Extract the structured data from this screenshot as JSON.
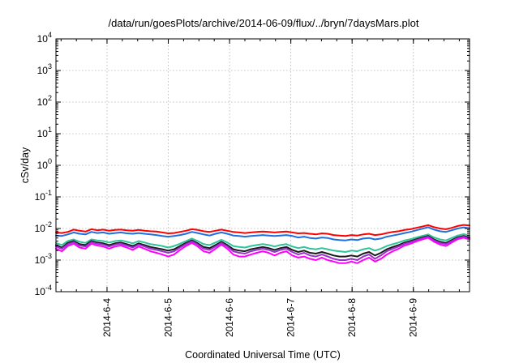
{
  "chart_data": {
    "type": "line",
    "title": "/data/run/goesPlots/archive/2014-06-09/flux/../bryn/7daysMars.plot",
    "xlabel": "Coordinated Universal Time (UTC)",
    "ylabel": "cSv/day",
    "y_scale": "log",
    "ylim": [
      0.0001,
      10000
    ],
    "y_ticks": [
      {
        "base": "10",
        "exp": "-4",
        "value": 0.0001
      },
      {
        "base": "10",
        "exp": "-3",
        "value": 0.001
      },
      {
        "base": "10",
        "exp": "-2",
        "value": 0.01
      },
      {
        "base": "10",
        "exp": "-1",
        "value": 0.1
      },
      {
        "base": "10",
        "exp": "0",
        "value": 1
      },
      {
        "base": "10",
        "exp": "1",
        "value": 10
      },
      {
        "base": "10",
        "exp": "2",
        "value": 100
      },
      {
        "base": "10",
        "exp": "3",
        "value": 1000
      },
      {
        "base": "10",
        "exp": "4",
        "value": 10000
      }
    ],
    "xlim": [
      "2014-06-03 04:00",
      "2014-06-09 22:00"
    ],
    "x_ticks": [
      "2014-6-4",
      "2014-6-5",
      "2014-6-6",
      "2014-6-7",
      "2014-6-8",
      "2014-6-9"
    ],
    "grid": true,
    "legend": "none",
    "series": [
      {
        "color": "#ff0000",
        "values": [
          0.0075,
          0.0072,
          0.0078,
          0.0092,
          0.0085,
          0.008,
          0.0095,
          0.0088,
          0.0092,
          0.0085,
          0.009,
          0.0092,
          0.0088,
          0.0085,
          0.009,
          0.0085,
          0.0082,
          0.008,
          0.0075,
          0.007,
          0.0072,
          0.0078,
          0.0085,
          0.0095,
          0.009,
          0.0082,
          0.0078,
          0.0085,
          0.0092,
          0.0085,
          0.0078,
          0.0075,
          0.0072,
          0.0075,
          0.0078,
          0.008,
          0.0078,
          0.0075,
          0.0078,
          0.008,
          0.0075,
          0.007,
          0.0072,
          0.0068,
          0.0065,
          0.007,
          0.0068,
          0.0062,
          0.006,
          0.0058,
          0.0062,
          0.006,
          0.0065,
          0.0068,
          0.0062,
          0.0065,
          0.0072,
          0.0078,
          0.0082,
          0.009,
          0.0095,
          0.0105,
          0.0115,
          0.0128,
          0.011,
          0.01,
          0.0095,
          0.0105,
          0.012,
          0.013,
          0.0125
        ]
      },
      {
        "color": "#1f6fe0",
        "values": [
          0.006,
          0.0058,
          0.0065,
          0.0075,
          0.0068,
          0.0065,
          0.0078,
          0.0072,
          0.0075,
          0.0068,
          0.0072,
          0.0075,
          0.007,
          0.0068,
          0.0072,
          0.0068,
          0.0065,
          0.0062,
          0.0058,
          0.0055,
          0.0058,
          0.0062,
          0.0068,
          0.0078,
          0.0072,
          0.0065,
          0.006,
          0.0068,
          0.0075,
          0.0068,
          0.006,
          0.0058,
          0.0055,
          0.0058,
          0.006,
          0.0062,
          0.006,
          0.0058,
          0.006,
          0.0062,
          0.0058,
          0.0052,
          0.0055,
          0.005,
          0.0048,
          0.0052,
          0.005,
          0.0045,
          0.0043,
          0.0042,
          0.0045,
          0.0043,
          0.0048,
          0.005,
          0.0045,
          0.0048,
          0.0055,
          0.006,
          0.0065,
          0.0072,
          0.0078,
          0.0088,
          0.0098,
          0.011,
          0.0092,
          0.0082,
          0.0078,
          0.0088,
          0.01,
          0.0108,
          0.0102
        ]
      },
      {
        "color": "#2ec49a",
        "values": [
          0.0035,
          0.003,
          0.004,
          0.0045,
          0.0038,
          0.0035,
          0.0045,
          0.0042,
          0.004,
          0.0036,
          0.004,
          0.0042,
          0.0038,
          0.0034,
          0.004,
          0.0036,
          0.0032,
          0.003,
          0.0028,
          0.0025,
          0.0028,
          0.0033,
          0.004,
          0.0048,
          0.004,
          0.0032,
          0.003,
          0.0036,
          0.0044,
          0.0036,
          0.0028,
          0.0026,
          0.0025,
          0.0028,
          0.003,
          0.0032,
          0.003,
          0.0027,
          0.003,
          0.0032,
          0.0027,
          0.0024,
          0.0026,
          0.0023,
          0.0022,
          0.0024,
          0.0022,
          0.002,
          0.0019,
          0.0018,
          0.002,
          0.0019,
          0.0022,
          0.0024,
          0.002,
          0.0023,
          0.0028,
          0.0032,
          0.0036,
          0.0042,
          0.0046,
          0.0052,
          0.0058,
          0.0065,
          0.0052,
          0.0045,
          0.0042,
          0.005,
          0.006,
          0.0066,
          0.006
        ]
      },
      {
        "color": "#1a1a1a",
        "values": [
          0.003,
          0.0025,
          0.0035,
          0.004,
          0.0032,
          0.003,
          0.004,
          0.0036,
          0.0034,
          0.003,
          0.0034,
          0.0036,
          0.0032,
          0.0028,
          0.0034,
          0.003,
          0.0026,
          0.0024,
          0.0022,
          0.002,
          0.0022,
          0.0028,
          0.0035,
          0.0042,
          0.0034,
          0.0026,
          0.0024,
          0.003,
          0.0038,
          0.003,
          0.0022,
          0.002,
          0.0019,
          0.0022,
          0.0024,
          0.0026,
          0.0024,
          0.0021,
          0.0024,
          0.0026,
          0.0021,
          0.0018,
          0.002,
          0.0017,
          0.0016,
          0.0018,
          0.0016,
          0.0014,
          0.0013,
          0.0013,
          0.0014,
          0.0013,
          0.0016,
          0.0018,
          0.0014,
          0.0017,
          0.0022,
          0.0026,
          0.003,
          0.0036,
          0.004,
          0.0046,
          0.0052,
          0.0058,
          0.0045,
          0.0038,
          0.0035,
          0.0043,
          0.0053,
          0.0058,
          0.0052
        ]
      },
      {
        "color": "#9932cc",
        "values": [
          0.0027,
          0.0023,
          0.0032,
          0.0037,
          0.0029,
          0.0027,
          0.0037,
          0.0033,
          0.0031,
          0.0027,
          0.0031,
          0.0033,
          0.0029,
          0.0025,
          0.0031,
          0.0027,
          0.0023,
          0.0021,
          0.0019,
          0.0017,
          0.0019,
          0.0025,
          0.0032,
          0.0039,
          0.0031,
          0.0023,
          0.0021,
          0.0027,
          0.0035,
          0.0027,
          0.0019,
          0.0017,
          0.0016,
          0.0019,
          0.0021,
          0.0023,
          0.0021,
          0.0018,
          0.0021,
          0.0023,
          0.0018,
          0.0015,
          0.0017,
          0.0014,
          0.0013,
          0.0015,
          0.0013,
          0.0011,
          0.001,
          0.001,
          0.0011,
          0.001,
          0.0013,
          0.0015,
          0.0011,
          0.0014,
          0.0019,
          0.0023,
          0.0027,
          0.0033,
          0.0037,
          0.0043,
          0.0049,
          0.0055,
          0.0042,
          0.0035,
          0.0032,
          0.004,
          0.005,
          0.0055,
          0.0049
        ]
      },
      {
        "color": "#ff00ff",
        "values": [
          0.0023,
          0.0019,
          0.0028,
          0.0033,
          0.0025,
          0.0023,
          0.0033,
          0.0029,
          0.0027,
          0.0023,
          0.0027,
          0.0029,
          0.0025,
          0.0021,
          0.0027,
          0.0023,
          0.0019,
          0.0017,
          0.0015,
          0.0013,
          0.0015,
          0.0021,
          0.0028,
          0.0035,
          0.0027,
          0.0019,
          0.0017,
          0.0023,
          0.0031,
          0.0023,
          0.0015,
          0.0013,
          0.0013,
          0.0015,
          0.0017,
          0.0019,
          0.0017,
          0.0014,
          0.0017,
          0.0019,
          0.0014,
          0.0012,
          0.0013,
          0.0011,
          0.001,
          0.0012,
          0.001,
          0.0009,
          0.0008,
          0.0008,
          0.0009,
          0.0008,
          0.001,
          0.0012,
          0.0009,
          0.0011,
          0.0015,
          0.0019,
          0.0023,
          0.0029,
          0.0033,
          0.0039,
          0.0045,
          0.0051,
          0.0038,
          0.0031,
          0.0028,
          0.0036,
          0.0046,
          0.0051,
          0.0045
        ]
      }
    ]
  }
}
